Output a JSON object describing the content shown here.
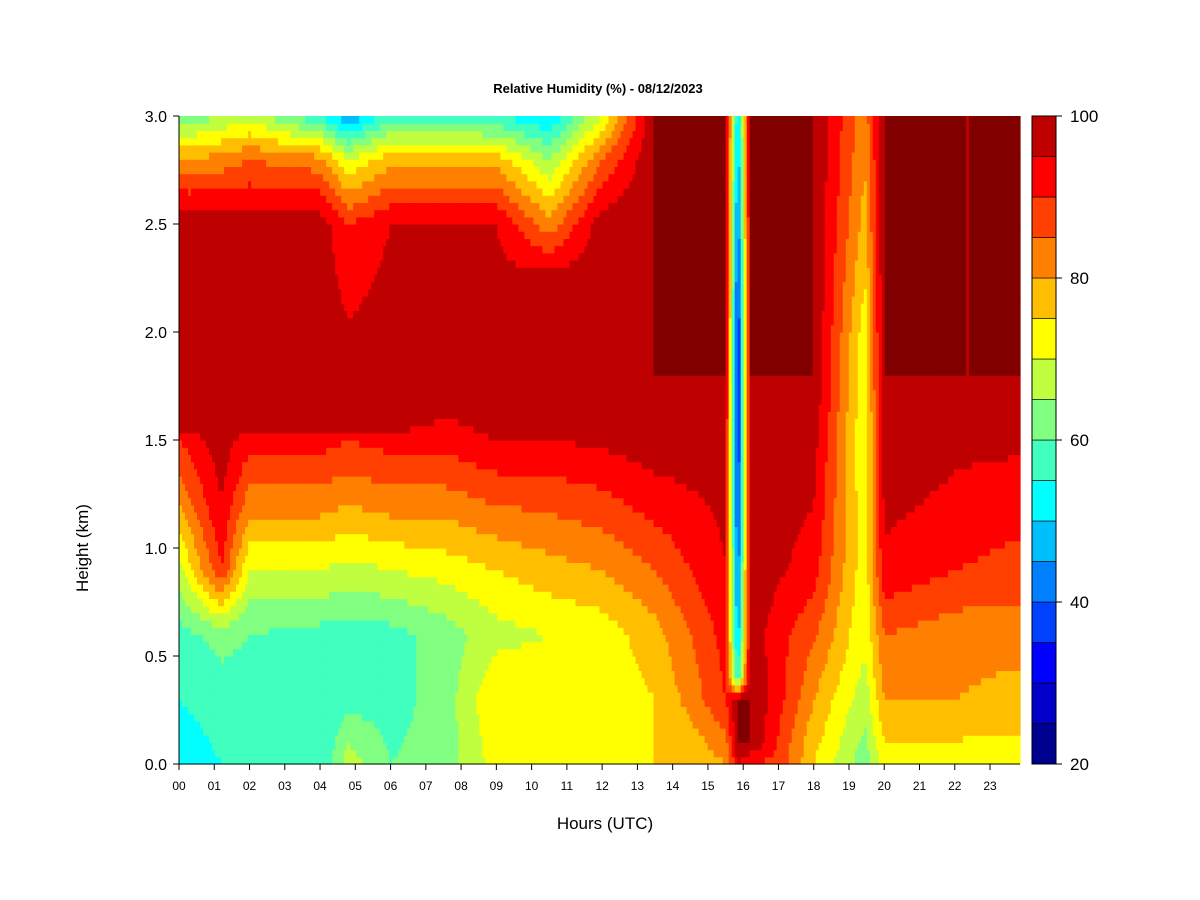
{
  "chart_data": {
    "type": "heatmap",
    "title": "Relative Humidity (%) - 08/12/2023",
    "xlabel": "Hours (UTC)",
    "ylabel": "Height (km)",
    "x_ticks": [
      "00",
      "01",
      "02",
      "03",
      "04",
      "05",
      "06",
      "07",
      "08",
      "09",
      "10",
      "11",
      "12",
      "13",
      "14",
      "15",
      "16",
      "17",
      "18",
      "19",
      "20",
      "21",
      "22",
      "23"
    ],
    "y_ticks": [
      "0.0",
      "0.5",
      "1.0",
      "1.5",
      "2.0",
      "2.5",
      "3.0"
    ],
    "xlim": [
      0,
      23.85
    ],
    "ylim": [
      0,
      3.0
    ],
    "colorbar": {
      "min": 20,
      "max": 100,
      "step": 5,
      "tick_labels": [
        "20",
        "40",
        "60",
        "80",
        "100"
      ],
      "colors": [
        "#00008f",
        "#0000c8",
        "#0000ff",
        "#0040ff",
        "#0080ff",
        "#00bfff",
        "#00ffff",
        "#40ffbf",
        "#80ff80",
        "#bfff40",
        "#ffff00",
        "#ffbf00",
        "#ff8000",
        "#ff4000",
        "#ff0000",
        "#bf0000",
        "#800000"
      ]
    },
    "series": [
      {
        "hour": 0,
        "profile": [
          [
            0,
            52
          ],
          [
            0.3,
            55
          ],
          [
            0.6,
            58
          ],
          [
            0.9,
            68
          ],
          [
            1.2,
            80
          ],
          [
            1.5,
            90
          ],
          [
            1.6,
            100
          ],
          [
            2.5,
            100
          ],
          [
            2.8,
            80
          ],
          [
            3.0,
            60
          ]
        ]
      },
      {
        "hour": 1.2,
        "profile": [
          [
            0,
            55
          ],
          [
            0.3,
            57
          ],
          [
            0.6,
            62
          ],
          [
            0.9,
            90
          ],
          [
            1.2,
            95
          ],
          [
            1.5,
            98
          ],
          [
            1.6,
            100
          ],
          [
            2.5,
            98
          ],
          [
            2.8,
            82
          ],
          [
            3.0,
            65
          ]
        ]
      },
      {
        "hour": 2,
        "profile": [
          [
            0,
            55
          ],
          [
            0.3,
            57
          ],
          [
            0.6,
            60
          ],
          [
            0.9,
            70
          ],
          [
            1.2,
            82
          ],
          [
            1.5,
            92
          ],
          [
            1.6,
            100
          ],
          [
            2.5,
            98
          ],
          [
            2.8,
            85
          ],
          [
            3.0,
            68
          ]
        ]
      },
      {
        "hour": 4,
        "profile": [
          [
            0,
            55
          ],
          [
            0.3,
            55
          ],
          [
            0.6,
            58
          ],
          [
            0.9,
            70
          ],
          [
            1.2,
            82
          ],
          [
            1.5,
            92
          ],
          [
            1.6,
            100
          ],
          [
            2.5,
            98
          ],
          [
            2.8,
            82
          ],
          [
            3.0,
            55
          ]
        ]
      },
      {
        "hour": 4.8,
        "profile": [
          [
            0,
            68
          ],
          [
            0.3,
            58
          ],
          [
            0.6,
            58
          ],
          [
            0.9,
            68
          ],
          [
            1.2,
            80
          ],
          [
            1.5,
            90
          ],
          [
            1.6,
            100
          ],
          [
            2.5,
            90
          ],
          [
            2.8,
            70
          ],
          [
            3.0,
            45
          ]
        ]
      },
      {
        "hour": 6,
        "profile": [
          [
            0,
            60
          ],
          [
            0.3,
            58
          ],
          [
            0.6,
            58
          ],
          [
            0.9,
            70
          ],
          [
            1.2,
            82
          ],
          [
            1.5,
            92
          ],
          [
            1.6,
            100
          ],
          [
            2.5,
            95
          ],
          [
            2.8,
            78
          ],
          [
            3.0,
            58
          ]
        ]
      },
      {
        "hour": 7.5,
        "profile": [
          [
            0,
            62
          ],
          [
            0.3,
            62
          ],
          [
            0.6,
            62
          ],
          [
            0.9,
            72
          ],
          [
            1.2,
            82
          ],
          [
            1.5,
            92
          ],
          [
            1.8,
            100
          ],
          [
            2.5,
            95
          ],
          [
            2.8,
            78
          ],
          [
            3.0,
            58
          ]
        ]
      },
      {
        "hour": 9,
        "profile": [
          [
            0,
            72
          ],
          [
            0.3,
            75
          ],
          [
            0.6,
            68
          ],
          [
            0.9,
            75
          ],
          [
            1.2,
            85
          ],
          [
            1.5,
            95
          ],
          [
            1.7,
            100
          ],
          [
            2.5,
            95
          ],
          [
            2.8,
            78
          ],
          [
            3.0,
            55
          ]
        ]
      },
      {
        "hour": 10.5,
        "profile": [
          [
            0,
            72
          ],
          [
            0.3,
            75
          ],
          [
            0.6,
            70
          ],
          [
            0.9,
            78
          ],
          [
            1.2,
            86
          ],
          [
            1.5,
            95
          ],
          [
            1.7,
            100
          ],
          [
            2.2,
            100
          ],
          [
            2.5,
            82
          ],
          [
            2.8,
            65
          ],
          [
            3.0,
            50
          ]
        ]
      },
      {
        "hour": 12,
        "profile": [
          [
            0,
            75
          ],
          [
            0.3,
            72
          ],
          [
            0.6,
            72
          ],
          [
            0.9,
            80
          ],
          [
            1.2,
            88
          ],
          [
            1.5,
            96
          ],
          [
            1.7,
            100
          ],
          [
            2.5,
            98
          ],
          [
            2.8,
            85
          ],
          [
            3.0,
            70
          ]
        ]
      },
      {
        "hour": 13.5,
        "profile": [
          [
            0,
            75
          ],
          [
            0.3,
            75
          ],
          [
            0.6,
            78
          ],
          [
            0.9,
            85
          ],
          [
            1.2,
            92
          ],
          [
            1.5,
            98
          ],
          [
            1.7,
            100
          ],
          [
            3.0,
            100
          ]
        ]
      },
      {
        "hour": 14.5,
        "profile": [
          [
            0,
            75
          ],
          [
            0.3,
            82
          ],
          [
            0.6,
            85
          ],
          [
            0.9,
            90
          ],
          [
            1.2,
            94
          ],
          [
            1.5,
            98
          ],
          [
            1.8,
            100
          ],
          [
            3.0,
            100
          ]
        ]
      },
      {
        "hour": 15.5,
        "profile": [
          [
            0,
            80
          ],
          [
            0.3,
            90
          ],
          [
            0.6,
            92
          ],
          [
            0.9,
            95
          ],
          [
            1.2,
            96
          ],
          [
            1.5,
            98
          ],
          [
            1.8,
            100
          ],
          [
            3.0,
            100
          ]
        ]
      },
      {
        "hour": 15.85,
        "profile": [
          [
            0,
            95
          ],
          [
            0.1,
            100
          ],
          [
            0.3,
            100
          ],
          [
            0.4,
            55
          ],
          [
            0.6,
            45
          ],
          [
            1.0,
            38
          ],
          [
            1.5,
            32
          ],
          [
            2.0,
            32
          ],
          [
            2.5,
            40
          ],
          [
            3.0,
            48
          ]
        ]
      },
      {
        "hour": 16.2,
        "profile": [
          [
            0,
            90
          ],
          [
            0.1,
            100
          ],
          [
            0.4,
            100
          ],
          [
            0.6,
            98
          ],
          [
            1.0,
            100
          ],
          [
            1.5,
            100
          ],
          [
            3.0,
            100
          ]
        ]
      },
      {
        "hour": 17,
        "profile": [
          [
            0,
            88
          ],
          [
            0.3,
            92
          ],
          [
            0.6,
            92
          ],
          [
            0.9,
            96
          ],
          [
            1.2,
            98
          ],
          [
            1.5,
            98
          ],
          [
            1.8,
            100
          ],
          [
            3.0,
            100
          ]
        ]
      },
      {
        "hour": 18,
        "profile": [
          [
            0,
            75
          ],
          [
            0.3,
            80
          ],
          [
            0.6,
            86
          ],
          [
            0.9,
            92
          ],
          [
            1.2,
            95
          ],
          [
            1.5,
            97
          ],
          [
            1.8,
            100
          ],
          [
            3.0,
            100
          ]
        ]
      },
      {
        "hour": 19.45,
        "profile": [
          [
            0,
            62
          ],
          [
            0.5,
            70
          ],
          [
            1.0,
            72
          ],
          [
            1.5,
            70
          ],
          [
            2.0,
            72
          ],
          [
            2.5,
            78
          ],
          [
            3.0,
            82
          ]
        ]
      },
      {
        "hour": 20,
        "profile": [
          [
            0,
            72
          ],
          [
            0.3,
            80
          ],
          [
            0.6,
            85
          ],
          [
            0.9,
            94
          ],
          [
            1.2,
            96
          ],
          [
            1.5,
            98
          ],
          [
            1.8,
            100
          ],
          [
            3.0,
            100
          ]
        ]
      },
      {
        "hour": 22,
        "profile": [
          [
            0,
            72
          ],
          [
            0.3,
            80
          ],
          [
            0.6,
            82
          ],
          [
            0.9,
            90
          ],
          [
            1.2,
            94
          ],
          [
            1.5,
            96
          ],
          [
            1.8,
            100
          ],
          [
            3.0,
            100
          ]
        ]
      },
      {
        "hour": 23.85,
        "profile": [
          [
            0,
            72
          ],
          [
            0.3,
            78
          ],
          [
            0.6,
            82
          ],
          [
            0.9,
            88
          ],
          [
            1.2,
            92
          ],
          [
            1.5,
            96
          ],
          [
            1.8,
            100
          ],
          [
            3.0,
            100
          ]
        ]
      }
    ]
  }
}
